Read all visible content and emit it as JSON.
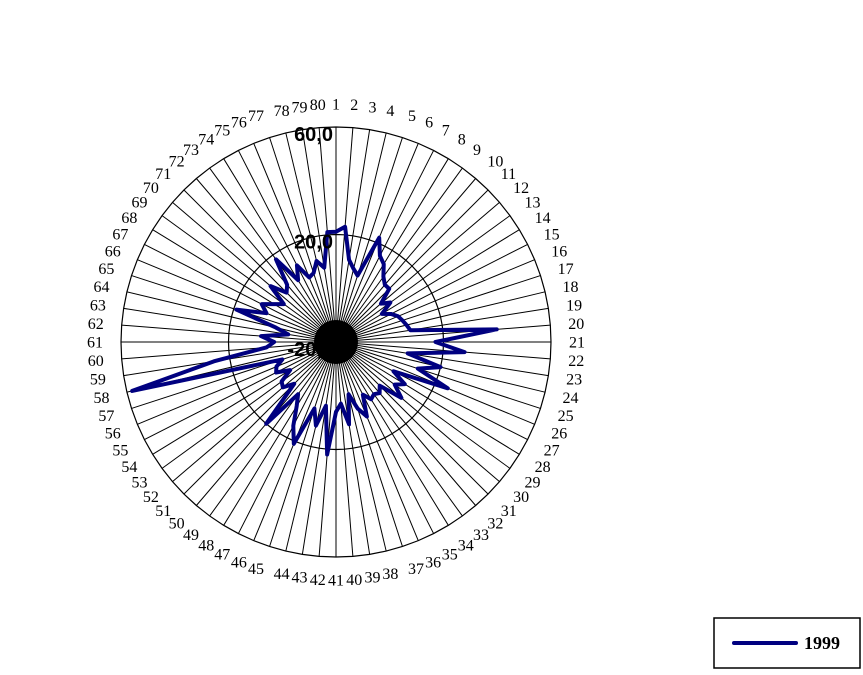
{
  "chart_data": {
    "type": "radar",
    "categories": [
      "1",
      "2",
      "3",
      "4",
      "5",
      "6",
      "7",
      "8",
      "9",
      "10",
      "11",
      "12",
      "13",
      "14",
      "15",
      "16",
      "17",
      "18",
      "19",
      "20",
      "21",
      "22",
      "23",
      "24",
      "25",
      "26",
      "27",
      "28",
      "29",
      "30",
      "31",
      "32",
      "33",
      "34",
      "35",
      "36",
      "37",
      "38",
      "39",
      "40",
      "41",
      "42",
      "43",
      "44",
      "45",
      "46",
      "47",
      "48",
      "49",
      "50",
      "51",
      "52",
      "53",
      "54",
      "55",
      "56",
      "57",
      "58",
      "59",
      "60",
      "61",
      "62",
      "63",
      "64",
      "65",
      "66",
      "67",
      "68",
      "69",
      "70",
      "71",
      "72",
      "73",
      "74",
      "75",
      "76",
      "77",
      "78",
      "79",
      "80"
    ],
    "series": [
      {
        "name": "1999",
        "color": "#000080",
        "values": [
          21,
          23,
          11,
          8,
          6,
          22,
          16,
          14,
          10,
          8,
          8,
          2,
          5,
          0,
          3,
          5,
          6,
          7,
          8,
          40,
          17,
          28,
          7,
          20,
          12,
          25,
          4,
          10,
          7,
          12,
          3,
          5,
          4,
          5,
          2,
          10,
          6,
          0,
          11,
          3,
          6,
          22,
          4,
          12,
          6,
          21,
          15,
          8,
          4,
          20,
          2,
          6,
          5,
          0,
          5,
          4,
          1,
          58,
          26,
          6,
          3,
          8,
          -2,
          3,
          19,
          8,
          11,
          7,
          4,
          12,
          6,
          8,
          18,
          7,
          12,
          6,
          7,
          11,
          8,
          21
        ]
      }
    ],
    "rlim": [
      -20,
      60
    ],
    "r_ticks": [
      -20,
      20,
      60
    ],
    "r_tick_labels": [
      "-20,0",
      "20,0",
      "60,0"
    ],
    "gridlines": true,
    "legend": {
      "position": "bottom-right",
      "entries": [
        "1999"
      ]
    }
  }
}
